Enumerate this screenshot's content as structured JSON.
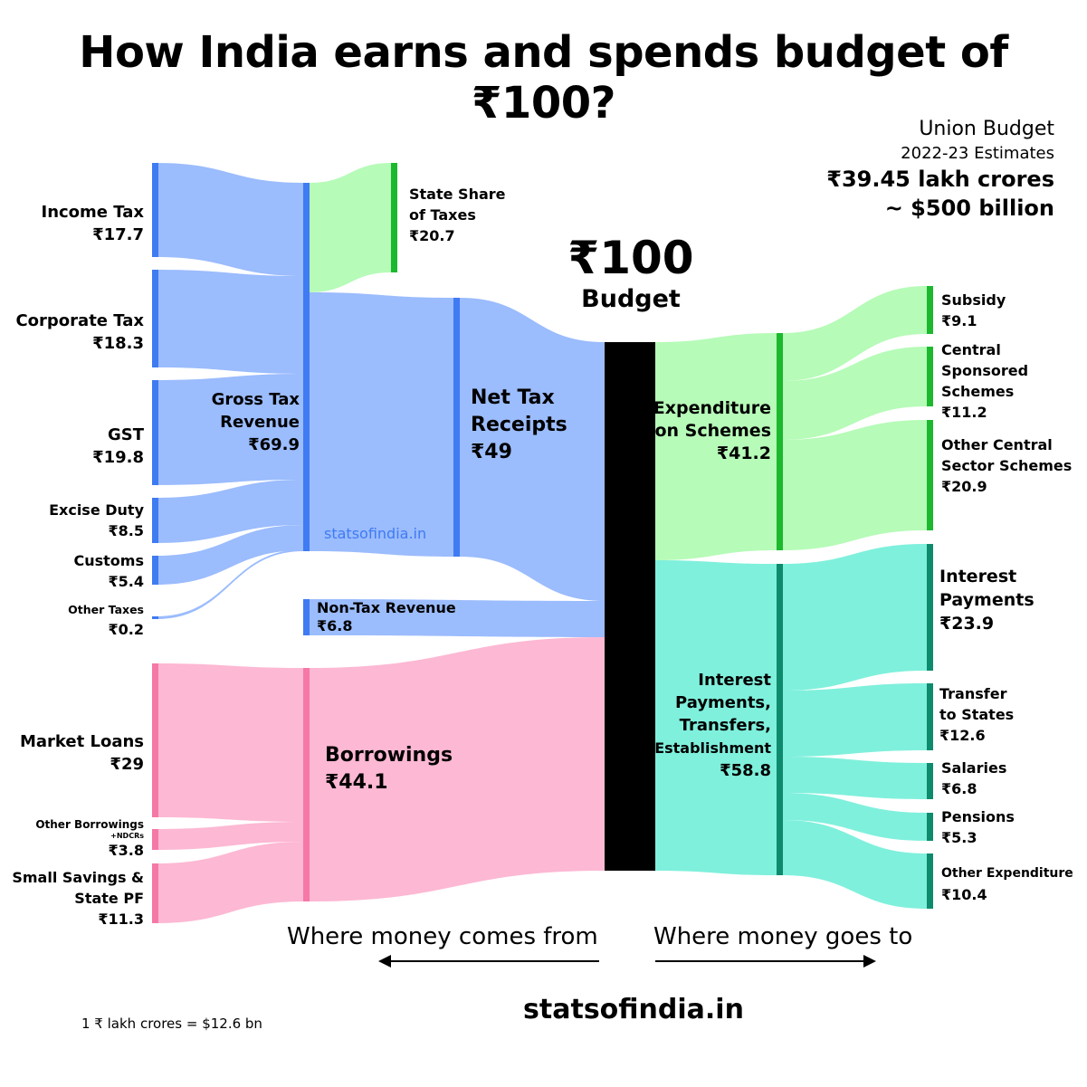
{
  "title": "How India earns and spends budget of ₹100?",
  "budget_header": {
    "line1": "Union Budget",
    "line2": "2022-23 Estimates",
    "line3": "₹39.45 lakh crores",
    "line4": "~ $500 billion"
  },
  "center": {
    "value": "₹100",
    "label": "Budget"
  },
  "sources": {
    "income_tax": {
      "name": "Income Tax",
      "value": "₹17.7",
      "amount": 17.7
    },
    "corporate_tax": {
      "name": "Corporate Tax",
      "value": "₹18.3",
      "amount": 18.3
    },
    "gst": {
      "name": "GST",
      "value": "₹19.8",
      "amount": 19.8
    },
    "excise": {
      "name": "Excise Duty",
      "value": "₹8.5",
      "amount": 8.5
    },
    "customs": {
      "name": "Customs",
      "value": "₹5.4",
      "amount": 5.4
    },
    "other_taxes": {
      "name": "Other Taxes",
      "value": "₹0.2",
      "amount": 0.2
    },
    "market_loans": {
      "name": "Market Loans",
      "value": "₹29",
      "amount": 29
    },
    "other_borrowings": {
      "name": "Other Borrowings",
      "sub": "+NDCRs",
      "value": "₹3.8",
      "amount": 3.8
    },
    "small_savings": {
      "name1": "Small Savings &",
      "name2": "State PF",
      "value": "₹11.3",
      "amount": 11.3
    }
  },
  "middle": {
    "gross_tax": {
      "name1": "Gross Tax",
      "name2": "Revenue",
      "value": "₹69.9",
      "amount": 69.9
    },
    "state_share": {
      "name1": "State Share",
      "name2": "of Taxes",
      "value": "₹20.7",
      "amount": 20.7
    },
    "net_tax": {
      "name1": "Net Tax",
      "name2": "Receipts",
      "value": "₹49",
      "amount": 49
    },
    "non_tax": {
      "name": "Non-Tax Revenue",
      "value": "₹6.8",
      "amount": 6.8
    },
    "borrowings": {
      "name": "Borrowings",
      "value": "₹44.1",
      "amount": 44.1
    }
  },
  "spending": {
    "schemes": {
      "name1": "Expenditure",
      "name2": "on Schemes",
      "value": "₹41.2",
      "amount": 41.2
    },
    "interest_group": {
      "name1": "Interest",
      "name2": "Payments,",
      "name3": "Transfers,",
      "name4": "Establishment",
      "value": "₹58.8",
      "amount": 58.8
    }
  },
  "outputs": {
    "subsidy": {
      "name": "Subsidy",
      "value": "₹9.1",
      "amount": 9.1
    },
    "css": {
      "name1": "Central",
      "name2": "Sponsored",
      "name3": "Schemes",
      "value": "₹11.2",
      "amount": 11.2
    },
    "other_central": {
      "name1": "Other Central",
      "name2": "Sector Schemes",
      "value": "₹20.9",
      "amount": 20.9
    },
    "interest_payments": {
      "name1": "Interest",
      "name2": "Payments",
      "value": "₹23.9",
      "amount": 23.9
    },
    "transfer_states": {
      "name1": "Transfer",
      "name2": "to States",
      "value": "₹12.6",
      "amount": 12.6
    },
    "salaries": {
      "name": "Salaries",
      "value": "₹6.8",
      "amount": 6.8
    },
    "pensions": {
      "name": "Pensions",
      "value": "₹5.3",
      "amount": 5.3
    },
    "other_expenditure": {
      "name": "Other Expenditure",
      "value": "₹10.4",
      "amount": 10.4
    }
  },
  "captions": {
    "left": "Where money comes from",
    "right": "Where money goes to"
  },
  "watermark": "statsofindia.in",
  "footer": "statsofindia.in",
  "note": "1 ₹ lakh crores = $12.6 bn",
  "colors": {
    "tax_flow": "#9bbcfd",
    "tax_node": "#3f7bf2",
    "state_flow": "#b6fbb8",
    "state_node": "#1cb82e",
    "borrow_flow": "#fdb8d3",
    "borrow_node": "#f678a6",
    "spend_green_flow": "#b6fbb8",
    "spend_green_node": "#1cb82e",
    "spend_teal_flow": "#7ff0dc",
    "spend_teal_node": "#0e8a6c",
    "center_node": "#000000"
  }
}
